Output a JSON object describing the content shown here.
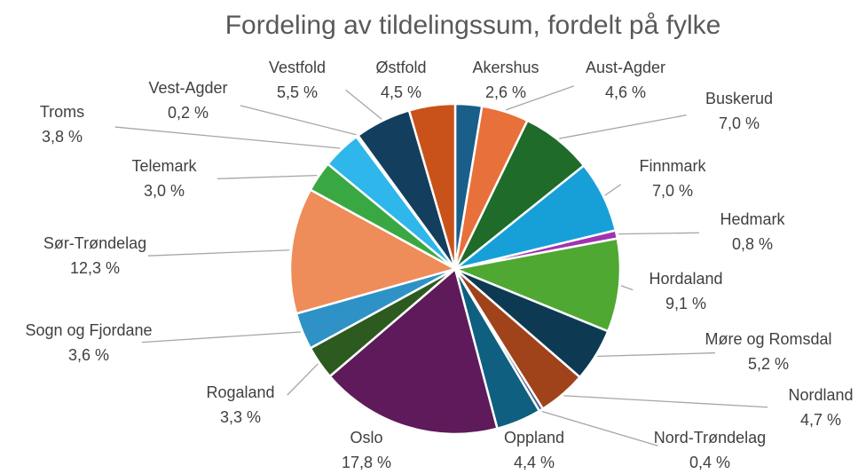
{
  "chart_data": {
    "type": "pie",
    "title": "Fordeling av tildelingssum, fordelt på fylke",
    "categories": [
      "Akershus",
      "Aust-Agder",
      "Buskerud",
      "Finnmark",
      "Hedmark",
      "Hordaland",
      "Møre og Romsdal",
      "Nordland",
      "Nord-Trøndelag",
      "Oppland",
      "Oslo",
      "Rogaland",
      "Sogn og Fjordane",
      "Sør-Trøndelag",
      "Telemark",
      "Troms",
      "Vest-Agder",
      "Vestfold",
      "Østfold"
    ],
    "values": [
      2.6,
      4.6,
      7.0,
      7.0,
      0.8,
      9.1,
      5.2,
      4.7,
      0.4,
      4.4,
      17.8,
      3.3,
      3.6,
      12.3,
      3.0,
      3.8,
      0.2,
      5.5,
      4.5
    ],
    "value_labels": [
      "2,6 %",
      "4,6 %",
      "7,0 %",
      "7,0 %",
      "0,8 %",
      "9,1 %",
      "5,2 %",
      "4,7 %",
      "0,4 %",
      "4,4 %",
      "17,8 %",
      "3,3 %",
      "3,6 %",
      "12,3 %",
      "3,0 %",
      "3,8 %",
      "0,2 %",
      "5,5 %",
      "4,5 %"
    ],
    "colors": [
      "#1a5e8a",
      "#e8703a",
      "#1e6b2a",
      "#17a0d8",
      "#a033b0",
      "#4ea832",
      "#0d3a52",
      "#a0431a",
      "#4d5a8a",
      "#0f5f80",
      "#5e1a5a",
      "#2d5a1e",
      "#2f92c7",
      "#ee8c5a",
      "#3aa842",
      "#2fb6ea",
      "#8c3a2a",
      "#143e5e",
      "#c9521a"
    ]
  }
}
